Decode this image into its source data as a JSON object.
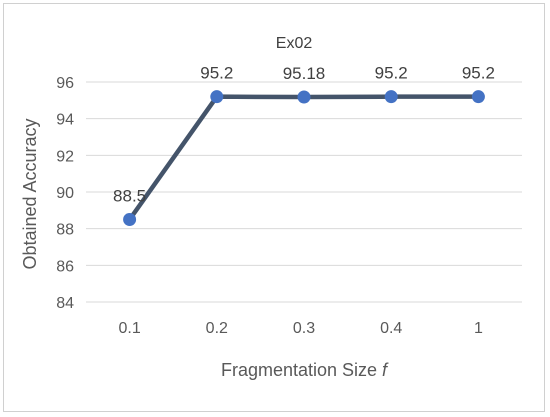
{
  "chart_data": {
    "type": "line",
    "title": "",
    "xlabel": "Fragmentation Size",
    "xlabel_var": "f",
    "ylabel": "Obtained Accuracy",
    "categories": [
      "0.1",
      "0.2",
      "0.3",
      "0.4",
      "1"
    ],
    "ylim": [
      84,
      96
    ],
    "yticks": [
      84,
      86,
      88,
      90,
      92,
      94,
      96
    ],
    "grid": true,
    "legend": "none",
    "series": [
      {
        "name": "Ex02",
        "values": [
          88.5,
          95.2,
          95.18,
          95.2,
          95.2
        ],
        "data_labels": [
          "88.5",
          "95.2",
          "95.18",
          "95.2",
          "95.2"
        ],
        "line_color": "#44546A",
        "marker_color": "#4472C4"
      }
    ]
  }
}
